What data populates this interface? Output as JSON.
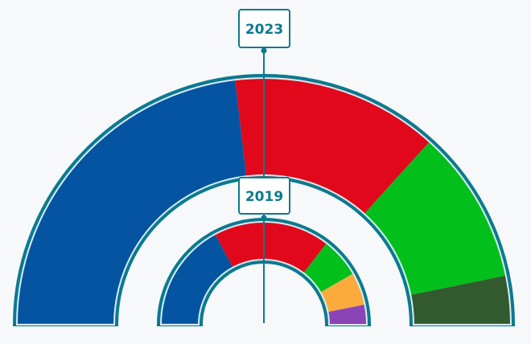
{
  "chart_data": {
    "type": "parliament-donut",
    "rings": [
      {
        "label": "2023",
        "segments": [
          {
            "color": "#0454a2",
            "value": 43.5
          },
          {
            "color": "#e1081c",
            "value": 25.5
          },
          {
            "color": "#03bf1c",
            "value": 19.0
          },
          {
            "color": "#335a2e",
            "value": 6.0
          }
        ],
        "total": 94.0
      },
      {
        "label": "2019",
        "segments": [
          {
            "color": "#0454a2",
            "value": 30.0
          },
          {
            "color": "#e1081c",
            "value": 32.0
          },
          {
            "color": "#03bf1c",
            "value": 11.0
          },
          {
            "color": "#fbab3b",
            "value": 9.0
          },
          {
            "color": "#8b44b8",
            "value": 5.5
          }
        ],
        "total": 87.5
      }
    ],
    "colors": {
      "outline": "#0b7a8f",
      "background": "#f6f8fa"
    }
  }
}
